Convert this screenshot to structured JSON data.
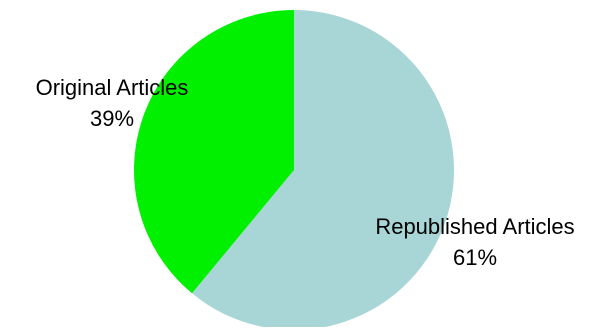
{
  "chart_data": {
    "type": "pie",
    "title": "",
    "start_angle": "12 o'clock",
    "direction": "clockwise",
    "slices": [
      {
        "label": "Republished Articles",
        "value": 61,
        "percent_label": "61%",
        "color": "#a8d5d6"
      },
      {
        "label": "Original Articles",
        "value": 39,
        "percent_label": "39%",
        "color": "#00f000"
      }
    ]
  }
}
